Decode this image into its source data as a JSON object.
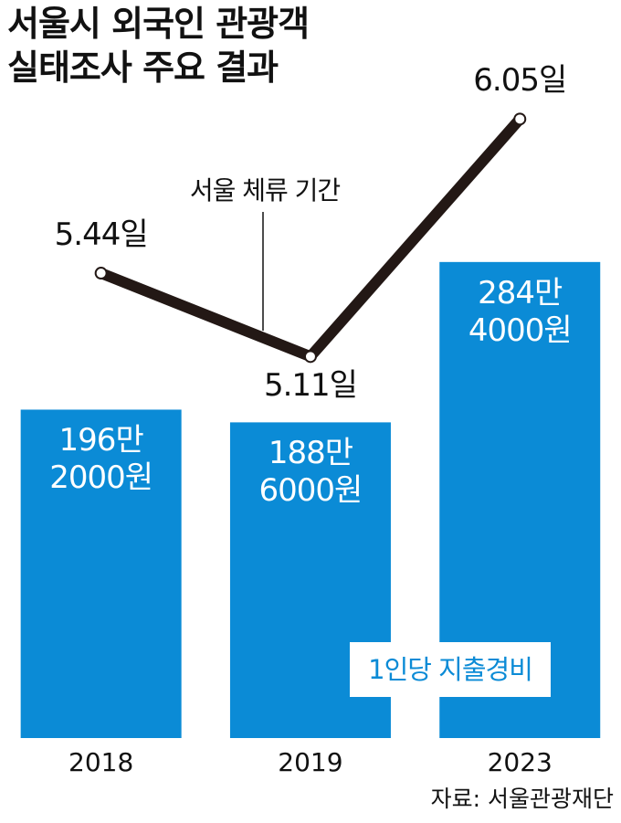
{
  "chart_data": {
    "type": "bar-line",
    "title": "서울시 외국인 관광객\n실태조사 주요 결과",
    "categories": [
      "2018",
      "2019",
      "2023"
    ],
    "series": [
      {
        "name": "1인당 지출경비",
        "type": "bar",
        "color": "#0b8bd6",
        "values": [
          1962000,
          1886000,
          2844000
        ],
        "value_labels": [
          "196만\n2000원",
          "188만\n6000원",
          "284만\n4000원"
        ]
      },
      {
        "name": "서울 체류 기간",
        "type": "line",
        "axis": "y2",
        "color": "#231815",
        "values": [
          5.44,
          5.11,
          6.05
        ],
        "value_labels": [
          "5.44일",
          "5.11일",
          "6.05일"
        ]
      }
    ],
    "ylim": [
      0,
      4000000
    ],
    "y2lim": [
      3.6,
      6.25
    ],
    "source": "자료: 서울관광재단"
  }
}
